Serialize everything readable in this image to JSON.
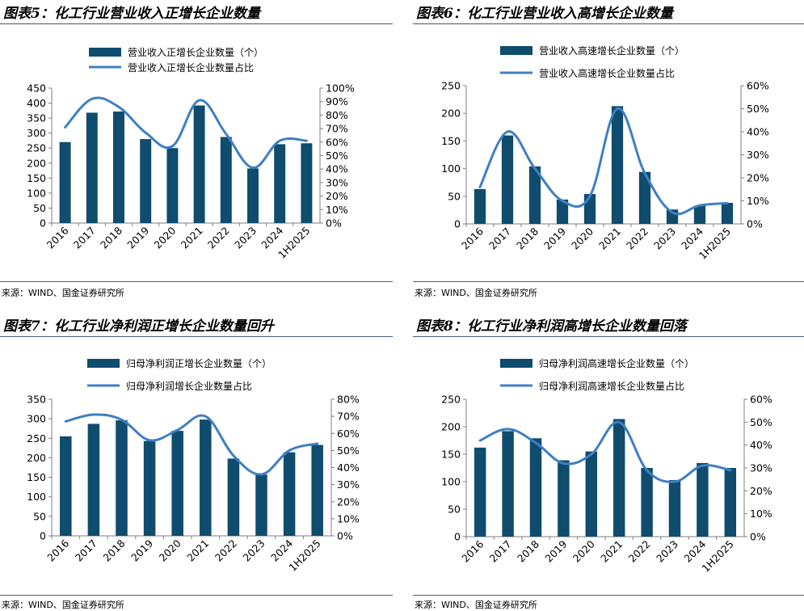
{
  "colors": {
    "bar": "#0f4c6e",
    "line": "#3f7fc3",
    "rule": "#4a5d75"
  },
  "chart_data": [
    {
      "type": "bar",
      "title": "图表5：化工行业营业收入正增长企业数量",
      "source": "来源：WIND、国金证券研究所",
      "categories": [
        "2016",
        "2017",
        "2018",
        "2019",
        "2020",
        "2021",
        "2022",
        "2023",
        "2024",
        "1H2025"
      ],
      "series": [
        {
          "name": "营业收入正增长企业数量（个）",
          "kind": "bar",
          "axis": "left",
          "values": [
            270,
            368,
            372,
            280,
            250,
            392,
            287,
            182,
            263,
            266
          ]
        },
        {
          "name": "营业收入正增长企业数量占比",
          "kind": "line",
          "axis": "right",
          "values": [
            0.71,
            0.92,
            0.86,
            0.67,
            0.57,
            0.91,
            0.66,
            0.41,
            0.61,
            0.61
          ]
        }
      ],
      "ylim_left": [
        0,
        450
      ],
      "yticks_left": [
        0,
        50,
        100,
        150,
        200,
        250,
        300,
        350,
        400,
        450
      ],
      "ylim_right": [
        0,
        1.0
      ],
      "yticks_right": [
        0,
        0.1,
        0.2,
        0.3,
        0.4,
        0.5,
        0.6,
        0.7,
        0.8,
        0.9,
        1.0
      ],
      "ytick_labels_right": [
        "0%",
        "10%",
        "20%",
        "30%",
        "40%",
        "50%",
        "60%",
        "70%",
        "80%",
        "90%",
        "100%"
      ]
    },
    {
      "type": "bar",
      "title": "图表6：化工行业营业收入高增长企业数量",
      "source": "来源：WIND、国金证券研究所",
      "categories": [
        "2016",
        "2017",
        "2018",
        "2019",
        "2020",
        "2021",
        "2022",
        "2023",
        "2024",
        "1H2025"
      ],
      "series": [
        {
          "name": "营业收入高速增长企业数量（个）",
          "kind": "bar",
          "axis": "left",
          "values": [
            63,
            160,
            104,
            44,
            54,
            213,
            94,
            26,
            33,
            38
          ]
        },
        {
          "name": "营业收入高速增长企业数量占比",
          "kind": "line",
          "axis": "right",
          "values": [
            0.16,
            0.4,
            0.24,
            0.1,
            0.12,
            0.5,
            0.22,
            0.05,
            0.08,
            0.09
          ]
        }
      ],
      "ylim_left": [
        0,
        250
      ],
      "yticks_left": [
        0,
        50,
        100,
        150,
        200,
        250
      ],
      "ylim_right": [
        0,
        0.6
      ],
      "yticks_right": [
        0,
        0.1,
        0.2,
        0.3,
        0.4,
        0.5,
        0.6
      ],
      "ytick_labels_right": [
        "0%",
        "10%",
        "20%",
        "30%",
        "40%",
        "50%",
        "60%"
      ]
    },
    {
      "type": "bar",
      "title": "图表7：化工行业净利润正增长企业数量回升",
      "source": "来源：WIND、国金证券研究所",
      "categories": [
        "2016",
        "2017",
        "2018",
        "2019",
        "2020",
        "2021",
        "2022",
        "2023",
        "2024",
        "1H2025"
      ],
      "series": [
        {
          "name": "归母净利润正增长企业数量（个）",
          "kind": "bar",
          "axis": "left",
          "values": [
            255,
            287,
            296,
            243,
            269,
            298,
            198,
            157,
            214,
            233
          ]
        },
        {
          "name": "归母净利润增长企业数量占比",
          "kind": "line",
          "axis": "right",
          "values": [
            0.67,
            0.71,
            0.68,
            0.56,
            0.62,
            0.7,
            0.47,
            0.36,
            0.5,
            0.54
          ]
        }
      ],
      "ylim_left": [
        0,
        350
      ],
      "yticks_left": [
        0,
        50,
        100,
        150,
        200,
        250,
        300,
        350
      ],
      "ylim_right": [
        0,
        0.8
      ],
      "yticks_right": [
        0,
        0.1,
        0.2,
        0.3,
        0.4,
        0.5,
        0.6,
        0.7,
        0.8
      ],
      "ytick_labels_right": [
        "0%",
        "10%",
        "20%",
        "30%",
        "40%",
        "50%",
        "60%",
        "70%",
        "80%"
      ]
    },
    {
      "type": "bar",
      "title": "图表8：化工行业净利润高增长企业数量回落",
      "source": "来源：WIND、国金证券研究所",
      "categories": [
        "2016",
        "2017",
        "2018",
        "2019",
        "2020",
        "2021",
        "2022",
        "2023",
        "2024",
        "1H2025"
      ],
      "series": [
        {
          "name": "归母净利润高速增长企业数量（个）",
          "kind": "bar",
          "axis": "left",
          "values": [
            162,
            192,
            179,
            139,
            155,
            214,
            125,
            103,
            134,
            125
          ]
        },
        {
          "name": "归母净利润高速增长企业数量占比",
          "kind": "line",
          "axis": "right",
          "values": [
            0.42,
            0.47,
            0.41,
            0.32,
            0.36,
            0.5,
            0.29,
            0.24,
            0.31,
            0.29
          ]
        }
      ],
      "ylim_left": [
        0,
        250
      ],
      "yticks_left": [
        0,
        50,
        100,
        150,
        200,
        250
      ],
      "ylim_right": [
        0,
        0.6
      ],
      "yticks_right": [
        0,
        0.1,
        0.2,
        0.3,
        0.4,
        0.5,
        0.6
      ],
      "ytick_labels_right": [
        "0%",
        "10%",
        "20%",
        "30%",
        "40%",
        "50%",
        "60%"
      ]
    }
  ]
}
